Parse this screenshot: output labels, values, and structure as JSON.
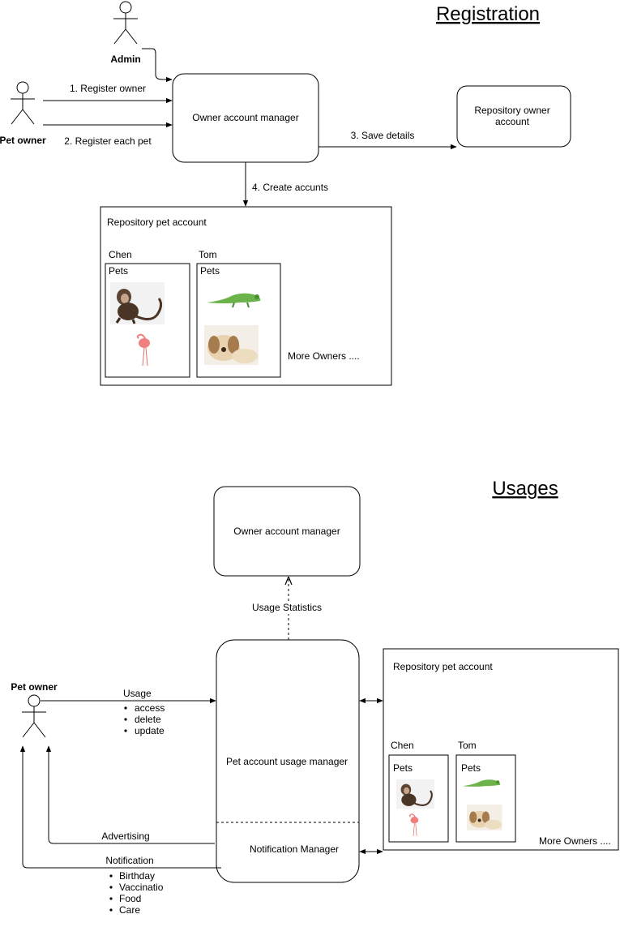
{
  "registration": {
    "title": "Registration",
    "admin_label": "Admin",
    "pet_owner_label": "Pet owner",
    "step1": "1. Register owner",
    "step2": "2. Register each pet",
    "step3": "3. Save details",
    "step4": "4. Create accunts",
    "owner_account_manager": "Owner account manager",
    "repo_owner_line1": "Repository owner",
    "repo_owner_line2": "account",
    "repo_pet_account": "Repository pet account",
    "owner1_name": "Chen",
    "owner2_name": "Tom",
    "pets_label": "Pets",
    "more_owners": "More Owners ...."
  },
  "usages": {
    "title": "Usages",
    "owner_account_manager": "Owner account manager",
    "usage_statistics": "Usage Statistics",
    "pet_owner_label": "Pet owner",
    "usage_label": "Usage",
    "usage_items": [
      "access",
      "delete",
      "update"
    ],
    "pet_account_usage_manager": "Pet account usage manager",
    "notification_manager": "Notification Manager",
    "advertising": "Advertising",
    "notification": "Notification",
    "notification_items": [
      "Birthday",
      "Vaccinatio",
      "Food",
      "Care"
    ],
    "repo_pet_account": "Repository pet account",
    "owner1_name": "Chen",
    "owner2_name": "Tom",
    "pets_label": "Pets",
    "more_owners": "More Owners ...."
  },
  "icons": [
    "actor-icon",
    "monkey-image",
    "flamingo-image",
    "iguana-image",
    "dog-image"
  ]
}
